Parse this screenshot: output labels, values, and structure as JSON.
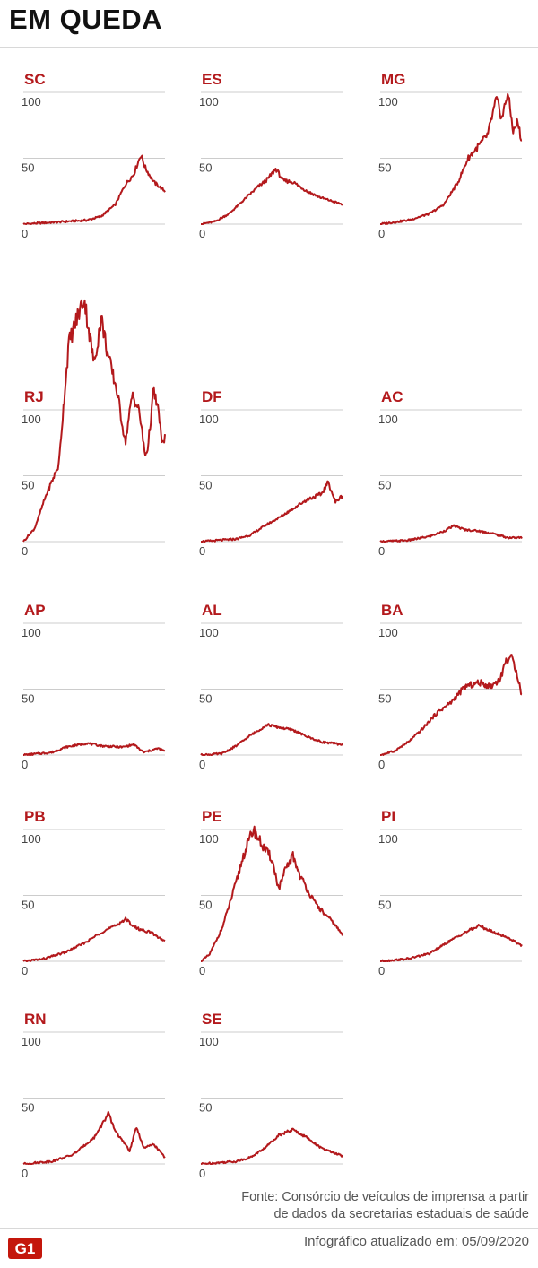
{
  "title": "EM QUEDA",
  "footer": {
    "source_line1": "Fonte: Consórcio de veículos de imprensa a partir",
    "source_line2": "de dados da secretarias estaduais de saúde",
    "logo_text": "G1",
    "updated": "Infográfico atualizado em: 05/09/2020"
  },
  "colors": {
    "line": "#b3191c",
    "label": "#b3191c",
    "grid": "#cccccc",
    "tick": "#444444"
  },
  "chart_data": [
    {
      "type": "line",
      "title": "SC",
      "ylim": [
        0,
        100
      ],
      "yticks": [
        "0",
        "50",
        "100"
      ],
      "grid": true,
      "keypoints": [
        [
          0,
          0
        ],
        [
          0.3,
          2
        ],
        [
          0.45,
          3
        ],
        [
          0.55,
          6
        ],
        [
          0.65,
          15
        ],
        [
          0.72,
          30
        ],
        [
          0.78,
          38
        ],
        [
          0.83,
          53
        ],
        [
          0.86,
          43
        ],
        [
          0.92,
          32
        ],
        [
          1,
          25
        ]
      ]
    },
    {
      "type": "line",
      "title": "ES",
      "ylim": [
        0,
        100
      ],
      "yticks": [
        "0",
        "50",
        "100"
      ],
      "grid": true,
      "keypoints": [
        [
          0,
          0
        ],
        [
          0.1,
          2
        ],
        [
          0.2,
          8
        ],
        [
          0.3,
          18
        ],
        [
          0.4,
          28
        ],
        [
          0.47,
          34
        ],
        [
          0.53,
          42
        ],
        [
          0.58,
          33
        ],
        [
          0.65,
          32
        ],
        [
          0.75,
          25
        ],
        [
          0.85,
          20
        ],
        [
          1,
          15
        ]
      ]
    },
    {
      "type": "line",
      "title": "MG",
      "ylim": [
        0,
        100
      ],
      "yticks": [
        "0",
        "50",
        "100"
      ],
      "grid": true,
      "keypoints": [
        [
          0,
          0
        ],
        [
          0.2,
          3
        ],
        [
          0.35,
          8
        ],
        [
          0.45,
          15
        ],
        [
          0.55,
          32
        ],
        [
          0.62,
          50
        ],
        [
          0.7,
          60
        ],
        [
          0.76,
          68
        ],
        [
          0.82,
          95
        ],
        [
          0.86,
          80
        ],
        [
          0.9,
          100
        ],
        [
          0.94,
          70
        ],
        [
          0.97,
          78
        ],
        [
          1,
          62
        ]
      ]
    },
    {
      "type": "line",
      "title": "RJ",
      "ylim": [
        0,
        100
      ],
      "yticks": [
        "0",
        "50",
        "100"
      ],
      "grid": true,
      "keypoints": [
        [
          0,
          0
        ],
        [
          0.08,
          10
        ],
        [
          0.16,
          35
        ],
        [
          0.25,
          58
        ],
        [
          0.32,
          150
        ],
        [
          0.38,
          170
        ],
        [
          0.43,
          185
        ],
        [
          0.47,
          155
        ],
        [
          0.5,
          135
        ],
        [
          0.55,
          170
        ],
        [
          0.6,
          140
        ],
        [
          0.66,
          115
        ],
        [
          0.72,
          75
        ],
        [
          0.77,
          112
        ],
        [
          0.82,
          98
        ],
        [
          0.86,
          65
        ],
        [
          0.88,
          72
        ],
        [
          0.92,
          115
        ],
        [
          0.96,
          95
        ],
        [
          0.98,
          72
        ],
        [
          1,
          80
        ]
      ]
    },
    {
      "type": "line",
      "title": "DF",
      "ylim": [
        0,
        100
      ],
      "yticks": [
        "0",
        "50",
        "100"
      ],
      "grid": true,
      "keypoints": [
        [
          0,
          0
        ],
        [
          0.25,
          2
        ],
        [
          0.35,
          5
        ],
        [
          0.45,
          12
        ],
        [
          0.55,
          18
        ],
        [
          0.65,
          25
        ],
        [
          0.75,
          32
        ],
        [
          0.85,
          36
        ],
        [
          0.9,
          45
        ],
        [
          0.95,
          30
        ],
        [
          1,
          35
        ]
      ]
    },
    {
      "type": "line",
      "title": "AC",
      "ylim": [
        0,
        100
      ],
      "yticks": [
        "0",
        "50",
        "100"
      ],
      "grid": true,
      "keypoints": [
        [
          0,
          0
        ],
        [
          0.2,
          1
        ],
        [
          0.35,
          4
        ],
        [
          0.45,
          8
        ],
        [
          0.52,
          12
        ],
        [
          0.6,
          9
        ],
        [
          0.7,
          8
        ],
        [
          0.8,
          6
        ],
        [
          0.9,
          3
        ],
        [
          1,
          3
        ]
      ]
    },
    {
      "type": "line",
      "title": "AP",
      "ylim": [
        0,
        100
      ],
      "yticks": [
        "0",
        "50",
        "100"
      ],
      "grid": true,
      "keypoints": [
        [
          0,
          0
        ],
        [
          0.2,
          2
        ],
        [
          0.3,
          6
        ],
        [
          0.45,
          9
        ],
        [
          0.55,
          7
        ],
        [
          0.7,
          6
        ],
        [
          0.78,
          8
        ],
        [
          0.85,
          2
        ],
        [
          0.95,
          5
        ],
        [
          1,
          3
        ]
      ]
    },
    {
      "type": "line",
      "title": "AL",
      "ylim": [
        0,
        100
      ],
      "yticks": [
        "0",
        "50",
        "100"
      ],
      "grid": true,
      "keypoints": [
        [
          0,
          0
        ],
        [
          0.15,
          1
        ],
        [
          0.25,
          7
        ],
        [
          0.35,
          15
        ],
        [
          0.47,
          23
        ],
        [
          0.55,
          21
        ],
        [
          0.65,
          19
        ],
        [
          0.75,
          14
        ],
        [
          0.85,
          10
        ],
        [
          1,
          8
        ]
      ]
    },
    {
      "type": "line",
      "title": "BA",
      "ylim": [
        0,
        100
      ],
      "yticks": [
        "0",
        "50",
        "100"
      ],
      "grid": true,
      "keypoints": [
        [
          0,
          0
        ],
        [
          0.1,
          3
        ],
        [
          0.2,
          10
        ],
        [
          0.3,
          20
        ],
        [
          0.4,
          32
        ],
        [
          0.5,
          40
        ],
        [
          0.6,
          52
        ],
        [
          0.7,
          55
        ],
        [
          0.78,
          52
        ],
        [
          0.85,
          58
        ],
        [
          0.88,
          70
        ],
        [
          0.92,
          75
        ],
        [
          0.96,
          65
        ],
        [
          1,
          45
        ]
      ]
    },
    {
      "type": "line",
      "title": "PB",
      "ylim": [
        0,
        100
      ],
      "yticks": [
        "0",
        "50",
        "100"
      ],
      "grid": true,
      "keypoints": [
        [
          0,
          0
        ],
        [
          0.15,
          2
        ],
        [
          0.3,
          7
        ],
        [
          0.45,
          15
        ],
        [
          0.55,
          22
        ],
        [
          0.65,
          27
        ],
        [
          0.72,
          32
        ],
        [
          0.8,
          25
        ],
        [
          0.9,
          22
        ],
        [
          1,
          15
        ]
      ]
    },
    {
      "type": "line",
      "title": "PE",
      "ylim": [
        0,
        100
      ],
      "yticks": [
        "0",
        "50",
        "100"
      ],
      "grid": true,
      "keypoints": [
        [
          0,
          0
        ],
        [
          0.06,
          5
        ],
        [
          0.15,
          25
        ],
        [
          0.25,
          60
        ],
        [
          0.3,
          80
        ],
        [
          0.37,
          100
        ],
        [
          0.45,
          85
        ],
        [
          0.5,
          78
        ],
        [
          0.55,
          55
        ],
        [
          0.6,
          70
        ],
        [
          0.65,
          80
        ],
        [
          0.7,
          65
        ],
        [
          0.75,
          55
        ],
        [
          0.8,
          45
        ],
        [
          0.88,
          35
        ],
        [
          0.93,
          30
        ],
        [
          1,
          20
        ]
      ]
    },
    {
      "type": "line",
      "title": "PI",
      "ylim": [
        0,
        100
      ],
      "yticks": [
        "0",
        "50",
        "100"
      ],
      "grid": true,
      "keypoints": [
        [
          0,
          0
        ],
        [
          0.2,
          2
        ],
        [
          0.35,
          6
        ],
        [
          0.5,
          16
        ],
        [
          0.6,
          22
        ],
        [
          0.7,
          27
        ],
        [
          0.8,
          22
        ],
        [
          0.9,
          18
        ],
        [
          1,
          12
        ]
      ]
    },
    {
      "type": "line",
      "title": "RN",
      "ylim": [
        0,
        100
      ],
      "yticks": [
        "0",
        "50",
        "100"
      ],
      "grid": true,
      "keypoints": [
        [
          0,
          0
        ],
        [
          0.2,
          2
        ],
        [
          0.35,
          7
        ],
        [
          0.5,
          20
        ],
        [
          0.6,
          38
        ],
        [
          0.65,
          25
        ],
        [
          0.75,
          10
        ],
        [
          0.8,
          28
        ],
        [
          0.85,
          12
        ],
        [
          0.92,
          15
        ],
        [
          1,
          5
        ]
      ]
    },
    {
      "type": "line",
      "title": "SE",
      "ylim": [
        0,
        100
      ],
      "yticks": [
        "0",
        "50",
        "100"
      ],
      "grid": true,
      "keypoints": [
        [
          0,
          0
        ],
        [
          0.25,
          2
        ],
        [
          0.35,
          5
        ],
        [
          0.45,
          12
        ],
        [
          0.55,
          22
        ],
        [
          0.65,
          26
        ],
        [
          0.75,
          20
        ],
        [
          0.85,
          12
        ],
        [
          1,
          6
        ]
      ]
    }
  ]
}
